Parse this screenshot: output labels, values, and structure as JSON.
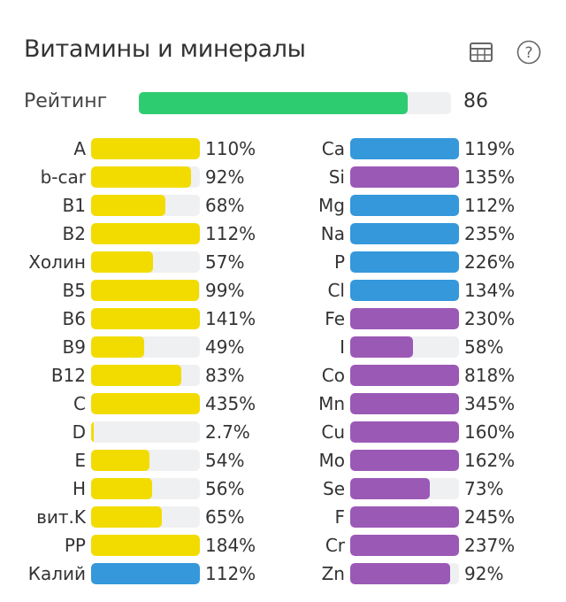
{
  "header": {
    "title": "Витамины и минералы",
    "icons": [
      "table-icon",
      "help-icon"
    ]
  },
  "rating": {
    "label": "Рейтинг",
    "value": 86,
    "value_text": "86",
    "color": "#2ecc71"
  },
  "colors": {
    "vitamin": "#f2dc00",
    "blue": "#3498db",
    "purple": "#9b59b6",
    "track": "#eff0f2"
  },
  "left": [
    {
      "label": "A",
      "value": 110,
      "text": "110%",
      "color": "vitamin"
    },
    {
      "label": "b-car",
      "value": 92,
      "text": "92%",
      "color": "vitamin"
    },
    {
      "label": "B1",
      "value": 68,
      "text": "68%",
      "color": "vitamin"
    },
    {
      "label": "B2",
      "value": 112,
      "text": "112%",
      "color": "vitamin"
    },
    {
      "label": "Холин",
      "value": 57,
      "text": "57%",
      "color": "vitamin"
    },
    {
      "label": "B5",
      "value": 99,
      "text": "99%",
      "color": "vitamin"
    },
    {
      "label": "B6",
      "value": 141,
      "text": "141%",
      "color": "vitamin"
    },
    {
      "label": "B9",
      "value": 49,
      "text": "49%",
      "color": "vitamin"
    },
    {
      "label": "B12",
      "value": 83,
      "text": "83%",
      "color": "vitamin"
    },
    {
      "label": "C",
      "value": 435,
      "text": "435%",
      "color": "vitamin"
    },
    {
      "label": "D",
      "value": 2.7,
      "text": "2.7%",
      "color": "vitamin"
    },
    {
      "label": "E",
      "value": 54,
      "text": "54%",
      "color": "vitamin"
    },
    {
      "label": "H",
      "value": 56,
      "text": "56%",
      "color": "vitamin"
    },
    {
      "label": "вит.K",
      "value": 65,
      "text": "65%",
      "color": "vitamin"
    },
    {
      "label": "PP",
      "value": 184,
      "text": "184%",
      "color": "vitamin"
    },
    {
      "label": "Калий",
      "value": 112,
      "text": "112%",
      "color": "blue"
    }
  ],
  "right": [
    {
      "label": "Ca",
      "value": 119,
      "text": "119%",
      "color": "blue"
    },
    {
      "label": "Si",
      "value": 135,
      "text": "135%",
      "color": "purple"
    },
    {
      "label": "Mg",
      "value": 112,
      "text": "112%",
      "color": "blue"
    },
    {
      "label": "Na",
      "value": 235,
      "text": "235%",
      "color": "blue"
    },
    {
      "label": "P",
      "value": 226,
      "text": "226%",
      "color": "blue"
    },
    {
      "label": "Cl",
      "value": 134,
      "text": "134%",
      "color": "blue"
    },
    {
      "label": "Fe",
      "value": 230,
      "text": "230%",
      "color": "purple"
    },
    {
      "label": "I",
      "value": 58,
      "text": "58%",
      "color": "purple"
    },
    {
      "label": "Co",
      "value": 818,
      "text": "818%",
      "color": "purple"
    },
    {
      "label": "Mn",
      "value": 345,
      "text": "345%",
      "color": "purple"
    },
    {
      "label": "Cu",
      "value": 160,
      "text": "160%",
      "color": "purple"
    },
    {
      "label": "Mo",
      "value": 162,
      "text": "162%",
      "color": "purple"
    },
    {
      "label": "Se",
      "value": 73,
      "text": "73%",
      "color": "purple"
    },
    {
      "label": "F",
      "value": 245,
      "text": "245%",
      "color": "purple"
    },
    {
      "label": "Cr",
      "value": 237,
      "text": "237%",
      "color": "purple"
    },
    {
      "label": "Zn",
      "value": 92,
      "text": "92%",
      "color": "purple"
    }
  ]
}
